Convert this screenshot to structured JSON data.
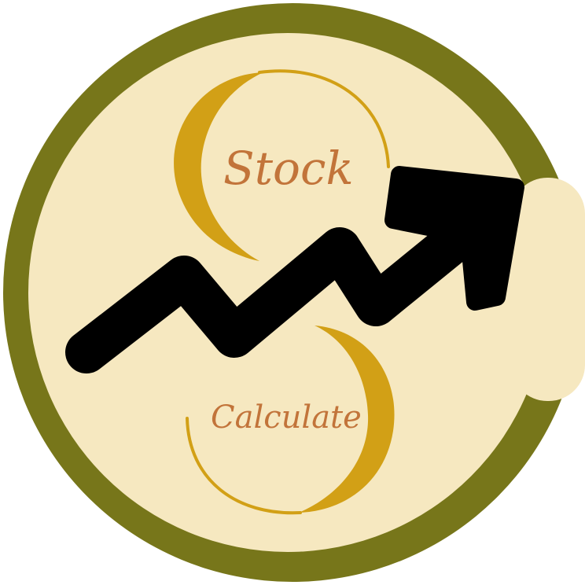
{
  "logo": {
    "word_top": "Stock",
    "word_bottom": "Calculate"
  },
  "colors": {
    "ring": "#77761a",
    "face": "#f6e8c0",
    "crescent": "#d2a016",
    "text": "#c2743a",
    "arrow": "#000000",
    "background": "#ffffff"
  },
  "icons": [
    "trend-up-arrow-icon",
    "crescent-icon"
  ]
}
